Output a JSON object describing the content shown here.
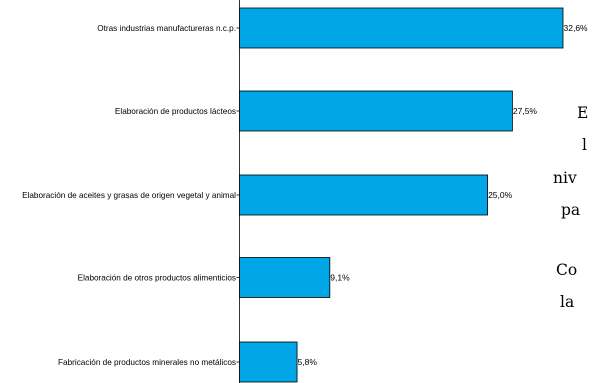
{
  "chart_data": {
    "type": "bar",
    "orientation": "horizontal",
    "categories": [
      "Otras industrias manufactureras n.c.p.",
      "Elaboración de productos lácteos",
      "Elaboración de aceites y grasas de origen vegetal y animal",
      "Elaboración de otros productos alimenticios",
      "Fabricación de productos minerales no metálicos"
    ],
    "values": [
      32.6,
      27.5,
      25.0,
      9.1,
      5.8
    ],
    "value_labels": [
      "32,6%",
      "27,5%",
      "25,0%",
      "9,1%",
      "5,8%"
    ],
    "title": "",
    "xlabel": "",
    "ylabel": "",
    "xlim": [
      0,
      32.6
    ],
    "grid": false,
    "bar_color": "#00a6e6",
    "bar_edge_color": "#000000"
  },
  "side_text": {
    "lines": [
      "E",
      "l",
      "niv",
      "pa",
      "Co",
      "la"
    ]
  }
}
